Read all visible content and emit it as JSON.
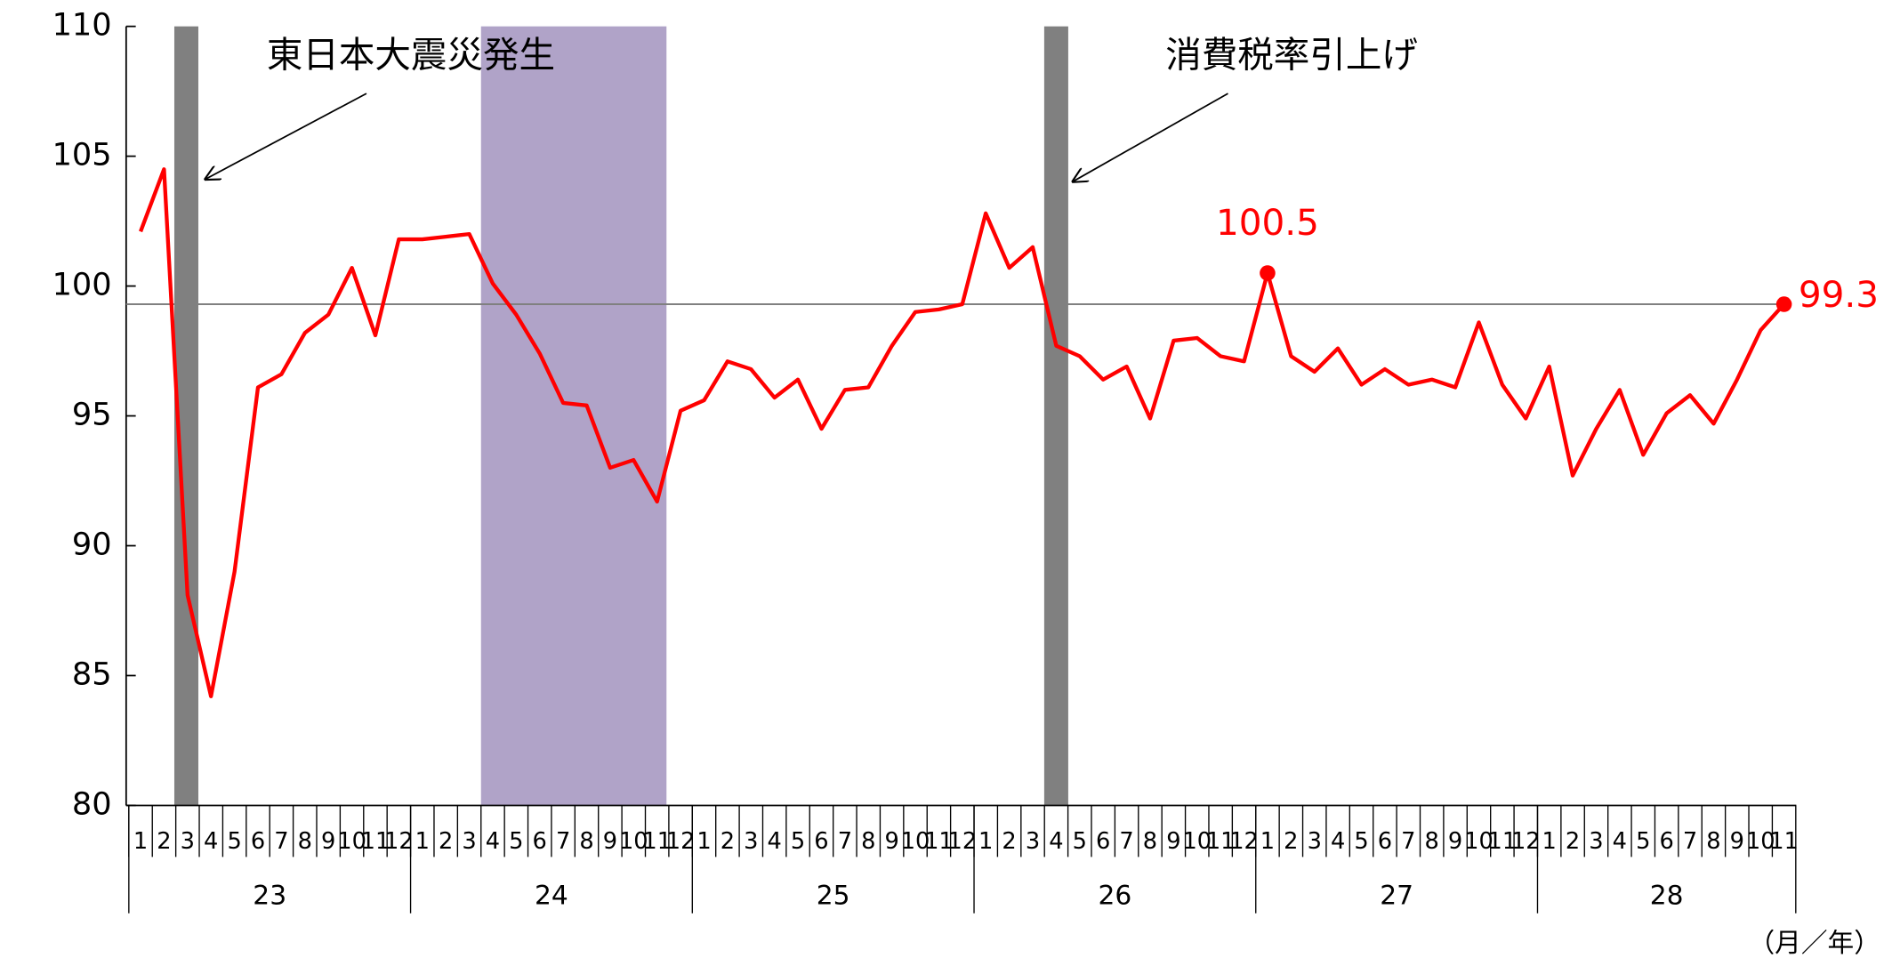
{
  "chart_data": {
    "type": "line",
    "annotations": [
      "東日本大震災発生",
      "消費税率引上げ"
    ],
    "x_label": "（月／年）",
    "categories": [
      "1",
      "2",
      "3",
      "4",
      "5",
      "6",
      "7",
      "8",
      "9",
      "10",
      "11",
      "12",
      "1",
      "2",
      "3",
      "4",
      "5",
      "6",
      "7",
      "8",
      "9",
      "10",
      "11",
      "12",
      "1",
      "2",
      "3",
      "4",
      "5",
      "6",
      "7",
      "8",
      "9",
      "10",
      "11",
      "12",
      "1",
      "2",
      "3",
      "4",
      "5",
      "6",
      "7",
      "8",
      "9",
      "10",
      "11",
      "12",
      "1",
      "2",
      "3",
      "4",
      "5",
      "6",
      "7",
      "8",
      "9",
      "10",
      "11",
      "12",
      "1",
      "2",
      "3",
      "4",
      "5",
      "6",
      "7",
      "8",
      "9",
      "10",
      "11"
    ],
    "x_groups": [
      "23",
      "24",
      "25",
      "26",
      "27",
      "28"
    ],
    "series": [
      {
        "color": "#ff0000",
        "values": [
          102.1,
          104.5,
          88.1,
          84.2,
          89.0,
          96.1,
          96.6,
          98.2,
          98.9,
          100.7,
          98.1,
          101.8,
          101.8,
          101.9,
          102.0,
          100.1,
          98.9,
          97.4,
          95.5,
          95.4,
          93.0,
          93.3,
          91.7,
          95.2,
          95.6,
          97.1,
          96.8,
          95.7,
          96.4,
          94.5,
          96.0,
          96.1,
          97.7,
          99.0,
          99.1,
          99.3,
          102.8,
          100.7,
          101.5,
          97.7,
          97.3,
          96.4,
          96.9,
          94.9,
          97.9,
          98.0,
          97.3,
          97.1,
          100.5,
          97.3,
          96.7,
          97.6,
          96.2,
          96.8,
          96.2,
          96.4,
          96.1,
          98.6,
          96.2,
          94.9,
          96.9,
          92.7,
          94.5,
          96.0,
          93.5,
          95.1,
          95.8,
          94.7,
          96.4,
          98.3,
          99.3
        ],
        "value_labels": [
          null,
          null,
          null,
          null,
          null,
          null,
          null,
          null,
          null,
          null,
          null,
          null,
          null,
          null,
          null,
          null,
          null,
          null,
          null,
          null,
          null,
          null,
          null,
          null,
          null,
          null,
          null,
          null,
          null,
          null,
          null,
          null,
          null,
          null,
          null,
          null,
          null,
          null,
          null,
          null,
          null,
          null,
          null,
          null,
          null,
          null,
          null,
          null,
          "100.5",
          null,
          null,
          null,
          null,
          null,
          null,
          null,
          null,
          null,
          null,
          null,
          null,
          null,
          null,
          null,
          null,
          null,
          null,
          null,
          null,
          null,
          "99.3"
        ]
      }
    ],
    "ylim": [
      80,
      110
    ],
    "yticks": [
      80,
      85,
      90,
      95,
      100,
      105,
      110
    ]
  }
}
